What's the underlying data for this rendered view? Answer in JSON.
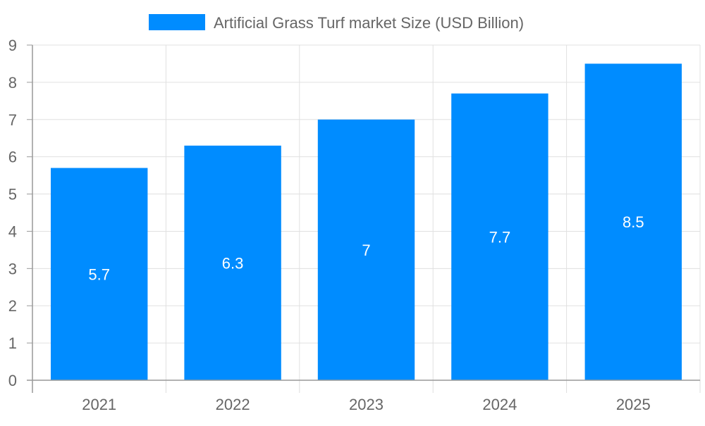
{
  "chart_data": {
    "type": "bar",
    "title": "",
    "categories": [
      "2021",
      "2022",
      "2023",
      "2024",
      "2025"
    ],
    "series": [
      {
        "name": "Artificial Grass Turf market Size (USD Billion)",
        "values": [
          5.7,
          6.3,
          7,
          7.7,
          8.5
        ],
        "color": "#008cff"
      }
    ],
    "data_labels": [
      "5.7",
      "6.3",
      "7",
      "7.7",
      "8.5"
    ],
    "xlabel": "",
    "ylabel": "",
    "ylim": [
      0,
      9
    ],
    "yticks": [
      0,
      1,
      2,
      3,
      4,
      5,
      6,
      7,
      8,
      9
    ],
    "grid": true,
    "legend": "top-center"
  }
}
